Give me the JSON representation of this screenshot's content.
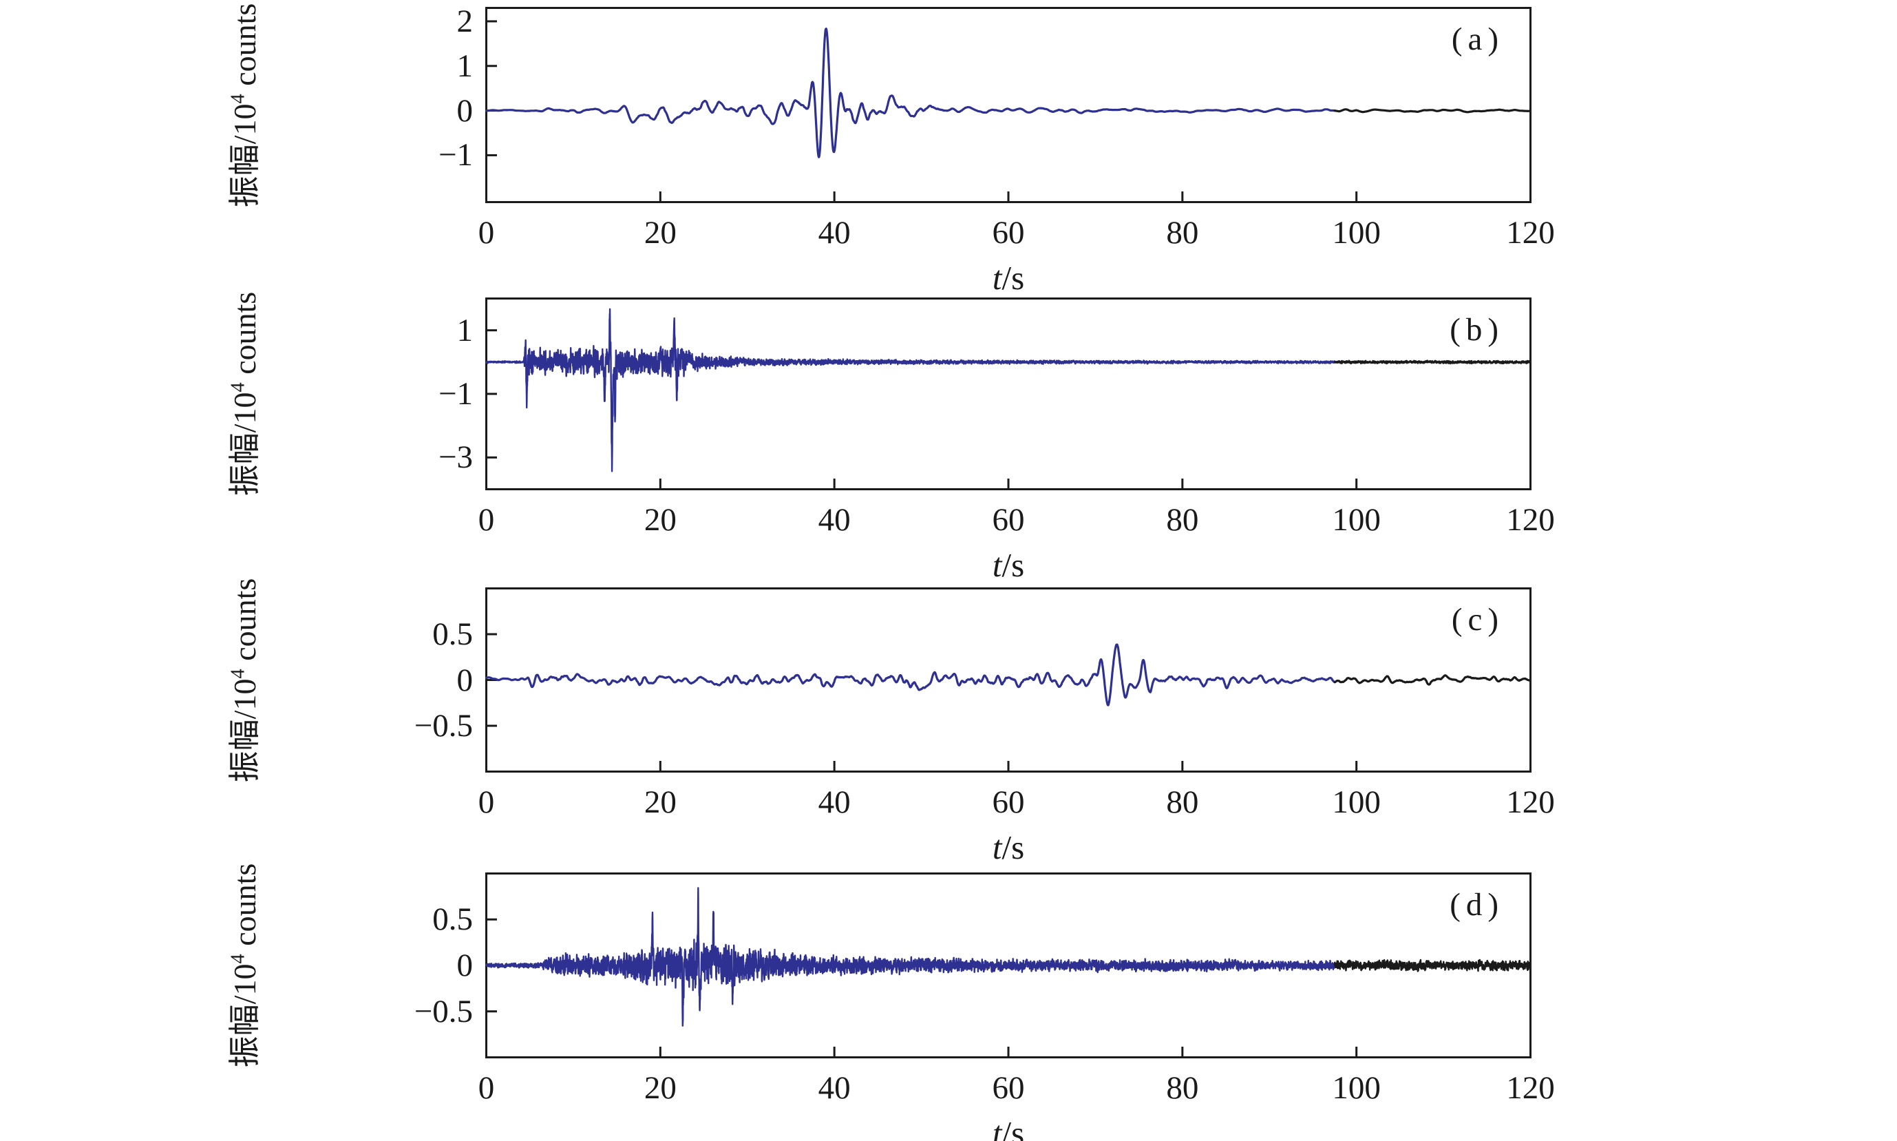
{
  "figure": {
    "background": "#ffffff",
    "axis_color": "#1a1a1a",
    "trace_color": "#2e3192",
    "tail_color": "#1a1a1a",
    "tail_start_t": 97.5
  },
  "chart_data": [
    {
      "panel": "a",
      "type": "line",
      "title": "(a)",
      "xlabel_var": "t",
      "xlabel_unit": "s",
      "ylabel_prefix": "振幅/10",
      "ylabel_sup": "4",
      "ylabel_suffix": " counts",
      "xlim": [
        0,
        120
      ],
      "xticks": [
        0,
        20,
        40,
        60,
        80,
        100,
        120
      ],
      "ylim": [
        -2.05,
        2.3
      ],
      "yticks": [
        {
          "v": 2,
          "label": "2"
        },
        {
          "v": 1,
          "label": "1"
        },
        {
          "v": 0,
          "label": "0"
        },
        {
          "v": -1,
          "label": "−1"
        }
      ],
      "trace_segments": [
        {
          "from_t": 0,
          "to_t": 97.5,
          "color": "#2e3192",
          "name": "processed-signal"
        },
        {
          "from_t": 97.5,
          "to_t": 120,
          "color": "#1a1a1a",
          "name": "tail-signal"
        }
      ],
      "signal": {
        "kind": "band-limited-oscillation",
        "dominant_period_s": 1.35,
        "dt": 0.03,
        "smooth_window": 22,
        "smooth_passes": 2,
        "peak_value": 1.9,
        "trough_value": -1.75,
        "peak_time_s": 39,
        "envelope": [
          [
            0,
            0.03
          ],
          [
            5,
            0.04
          ],
          [
            6,
            0.1
          ],
          [
            10,
            0.12
          ],
          [
            14,
            0.1
          ],
          [
            16,
            0.28
          ],
          [
            18,
            0.25
          ],
          [
            20,
            0.3
          ],
          [
            22,
            0.33
          ],
          [
            24,
            0.28
          ],
          [
            26,
            0.3
          ],
          [
            28,
            0.3
          ],
          [
            30,
            0.42
          ],
          [
            32,
            0.35
          ],
          [
            34,
            0.5
          ],
          [
            36,
            0.55
          ],
          [
            37,
            0.5
          ],
          [
            40,
            0.5
          ],
          [
            42,
            0.55
          ],
          [
            44,
            0.5
          ],
          [
            46,
            0.42
          ],
          [
            48,
            0.35
          ],
          [
            50,
            0.3
          ],
          [
            52,
            0.22
          ],
          [
            54,
            0.12
          ],
          [
            56,
            0.1
          ],
          [
            60,
            0.08
          ],
          [
            64,
            0.1
          ],
          [
            68,
            0.08
          ],
          [
            72,
            0.09
          ],
          [
            76,
            0.08
          ],
          [
            80,
            0.07
          ],
          [
            85,
            0.06
          ],
          [
            90,
            0.06
          ],
          [
            95,
            0.05
          ],
          [
            100,
            0.05
          ],
          [
            110,
            0.05
          ],
          [
            120,
            0.05
          ]
        ],
        "events": [
          {
            "t": 37.5,
            "amp": 0.6,
            "w": 0.35
          },
          {
            "t": 38.25,
            "amp": -1.55,
            "w": 0.42
          },
          {
            "t": 39.05,
            "amp": 1.75,
            "w": 0.45
          },
          {
            "t": 39.9,
            "amp": -0.95,
            "w": 0.4
          },
          {
            "t": 40.7,
            "amp": 0.5,
            "w": 0.35
          }
        ]
      }
    },
    {
      "panel": "b",
      "type": "line",
      "title": "(b)",
      "xlabel_var": "t",
      "xlabel_unit": "s",
      "ylabel_prefix": "振幅/10",
      "ylabel_sup": "4",
      "ylabel_suffix": " counts",
      "xlim": [
        0,
        120
      ],
      "xticks": [
        0,
        20,
        40,
        60,
        80,
        100,
        120
      ],
      "ylim": [
        -4,
        2
      ],
      "yticks": [
        {
          "v": 1,
          "label": "1"
        },
        {
          "v": -1,
          "label": "−1"
        },
        {
          "v": -3,
          "label": "−3"
        }
      ],
      "trace_segments": [
        {
          "from_t": 0,
          "to_t": 97.5,
          "color": "#2e3192",
          "name": "processed-signal"
        },
        {
          "from_t": 97.5,
          "to_t": 120,
          "color": "#1a1a1a",
          "name": "tail-signal"
        }
      ],
      "signal": {
        "kind": "high-frequency-noise-burst",
        "onset_time_s": 4.5,
        "dt": 0.012,
        "smooth_window": 2,
        "smooth_passes": 1,
        "peak_value": 1.35,
        "trough_value": -2.9,
        "trough_time_s": 14.5,
        "envelope": [
          [
            0,
            0.035
          ],
          [
            4.3,
            0.035
          ],
          [
            4.5,
            0.8
          ],
          [
            5.5,
            0.5
          ],
          [
            7,
            0.45
          ],
          [
            9,
            0.5
          ],
          [
            11,
            0.45
          ],
          [
            12.5,
            0.55
          ],
          [
            13.5,
            0.7
          ],
          [
            14.3,
            0.9
          ],
          [
            15,
            0.65
          ],
          [
            16,
            0.5
          ],
          [
            17,
            0.45
          ],
          [
            19,
            0.45
          ],
          [
            21,
            0.6
          ],
          [
            21.8,
            0.75
          ],
          [
            22.5,
            0.5
          ],
          [
            24,
            0.35
          ],
          [
            26,
            0.25
          ],
          [
            28,
            0.2
          ],
          [
            30,
            0.15
          ],
          [
            34,
            0.12
          ],
          [
            40,
            0.1
          ],
          [
            48,
            0.08
          ],
          [
            56,
            0.07
          ],
          [
            70,
            0.06
          ],
          [
            85,
            0.05
          ],
          [
            100,
            0.05
          ],
          [
            120,
            0.05
          ]
        ],
        "events": [
          {
            "t": 4.5,
            "amp": 0.9,
            "w": 0.06
          },
          {
            "t": 4.65,
            "amp": -1.05,
            "w": 0.07
          },
          {
            "t": 13.6,
            "amp": -1.2,
            "w": 0.07
          },
          {
            "t": 14.2,
            "amp": 1.3,
            "w": 0.08
          },
          {
            "t": 14.45,
            "amp": -2.85,
            "w": 0.1
          },
          {
            "t": 14.8,
            "amp": -1.5,
            "w": 0.06
          },
          {
            "t": 21.6,
            "amp": 1.2,
            "w": 0.08
          },
          {
            "t": 21.9,
            "amp": -1.0,
            "w": 0.07
          }
        ]
      }
    },
    {
      "panel": "c",
      "type": "line",
      "title": "(c)",
      "xlabel_var": "t",
      "xlabel_unit": "s",
      "ylabel_prefix": "振幅/10",
      "ylabel_sup": "4",
      "ylabel_suffix": " counts",
      "xlim": [
        0,
        120
      ],
      "xticks": [
        0,
        20,
        40,
        60,
        80,
        100,
        120
      ],
      "ylim": [
        -1,
        1
      ],
      "yticks": [
        {
          "v": 0.5,
          "label": "0.5"
        },
        {
          "v": 0,
          "label": "0"
        },
        {
          "v": -0.5,
          "label": "−0.5"
        }
      ],
      "trace_segments": [
        {
          "from_t": 0,
          "to_t": 97.5,
          "color": "#2e3192",
          "name": "processed-signal"
        },
        {
          "from_t": 97.5,
          "to_t": 120,
          "color": "#1a1a1a",
          "name": "tail-signal"
        }
      ],
      "signal": {
        "kind": "band-limited-oscillation",
        "dominant_period_s": 0.85,
        "dt": 0.03,
        "smooth_window": 14,
        "smooth_passes": 2,
        "peak_value": 0.38,
        "trough_value": -0.32,
        "peak_time_s": 72.5,
        "envelope": [
          [
            0,
            0.03
          ],
          [
            4.5,
            0.04
          ],
          [
            5,
            0.1
          ],
          [
            6,
            0.12
          ],
          [
            8,
            0.09
          ],
          [
            10,
            0.08
          ],
          [
            12,
            0.07
          ],
          [
            14,
            0.08
          ],
          [
            16,
            0.09
          ],
          [
            18,
            0.1
          ],
          [
            20,
            0.07
          ],
          [
            23,
            0.06
          ],
          [
            26,
            0.08
          ],
          [
            28,
            0.12
          ],
          [
            30,
            0.13
          ],
          [
            32,
            0.12
          ],
          [
            34,
            0.1
          ],
          [
            36,
            0.11
          ],
          [
            38,
            0.12
          ],
          [
            40,
            0.12
          ],
          [
            42,
            0.11
          ],
          [
            44,
            0.12
          ],
          [
            46,
            0.12
          ],
          [
            48,
            0.13
          ],
          [
            50,
            0.12
          ],
          [
            52,
            0.12
          ],
          [
            54,
            0.12
          ],
          [
            56,
            0.13
          ],
          [
            58,
            0.14
          ],
          [
            60,
            0.13
          ],
          [
            62,
            0.12
          ],
          [
            64,
            0.12
          ],
          [
            66,
            0.1
          ],
          [
            68,
            0.12
          ],
          [
            70,
            0.15
          ],
          [
            74,
            0.12
          ],
          [
            76,
            0.16
          ],
          [
            78,
            0.13
          ],
          [
            80,
            0.12
          ],
          [
            82,
            0.1
          ],
          [
            84,
            0.1
          ],
          [
            86,
            0.08
          ],
          [
            88,
            0.08
          ],
          [
            90,
            0.07
          ],
          [
            94,
            0.06
          ],
          [
            98,
            0.06
          ],
          [
            102,
            0.06
          ],
          [
            106,
            0.06
          ],
          [
            110,
            0.07
          ],
          [
            115,
            0.06
          ],
          [
            120,
            0.06
          ]
        ],
        "events": [
          {
            "t": 70.6,
            "amp": 0.2,
            "w": 0.3
          },
          {
            "t": 71.5,
            "amp": -0.3,
            "w": 0.4
          },
          {
            "t": 72.45,
            "amp": 0.37,
            "w": 0.42
          },
          {
            "t": 73.5,
            "amp": -0.2,
            "w": 0.38
          },
          {
            "t": 75.5,
            "amp": 0.24,
            "w": 0.35
          },
          {
            "t": 76.3,
            "amp": -0.15,
            "w": 0.3
          }
        ]
      }
    },
    {
      "panel": "d",
      "type": "line",
      "title": "(d)",
      "xlabel_var": "t",
      "xlabel_unit": "s",
      "ylabel_prefix": "振幅/10",
      "ylabel_sup": "4",
      "ylabel_suffix": " counts",
      "xlim": [
        0,
        120
      ],
      "xticks": [
        0,
        20,
        40,
        60,
        80,
        100,
        120
      ],
      "ylim": [
        -1,
        1
      ],
      "yticks": [
        {
          "v": 0.5,
          "label": "0.5"
        },
        {
          "v": 0,
          "label": "0"
        },
        {
          "v": -0.5,
          "label": "−0.5"
        }
      ],
      "trace_segments": [
        {
          "from_t": 0,
          "to_t": 97.5,
          "color": "#2e3192",
          "name": "processed-signal"
        },
        {
          "from_t": 97.5,
          "to_t": 120,
          "color": "#1a1a1a",
          "name": "tail-signal"
        }
      ],
      "signal": {
        "kind": "high-frequency-noise-burst",
        "onset_time_s": 7,
        "dt": 0.012,
        "smooth_window": 2,
        "smooth_passes": 1,
        "peak_value": 0.55,
        "trough_value": -0.65,
        "peak_time_s": 24.5,
        "envelope": [
          [
            0,
            0.025
          ],
          [
            6,
            0.03
          ],
          [
            7,
            0.08
          ],
          [
            8,
            0.12
          ],
          [
            9,
            0.14
          ],
          [
            10,
            0.13
          ],
          [
            11,
            0.15
          ],
          [
            12,
            0.14
          ],
          [
            13,
            0.13
          ],
          [
            14,
            0.14
          ],
          [
            15,
            0.14
          ],
          [
            16,
            0.16
          ],
          [
            17,
            0.18
          ],
          [
            18,
            0.28
          ],
          [
            19,
            0.26
          ],
          [
            20,
            0.22
          ],
          [
            21,
            0.26
          ],
          [
            22,
            0.25
          ],
          [
            23,
            0.28
          ],
          [
            24,
            0.38
          ],
          [
            25,
            0.32
          ],
          [
            26,
            0.3
          ],
          [
            27,
            0.26
          ],
          [
            28,
            0.28
          ],
          [
            29,
            0.24
          ],
          [
            30,
            0.24
          ],
          [
            31,
            0.2
          ],
          [
            32,
            0.2
          ],
          [
            33,
            0.19
          ],
          [
            34,
            0.16
          ],
          [
            36,
            0.14
          ],
          [
            38,
            0.13
          ],
          [
            40,
            0.12
          ],
          [
            43,
            0.11
          ],
          [
            46,
            0.1
          ],
          [
            50,
            0.1
          ],
          [
            54,
            0.09
          ],
          [
            58,
            0.08
          ],
          [
            62,
            0.08
          ],
          [
            66,
            0.07
          ],
          [
            70,
            0.08
          ],
          [
            74,
            0.07
          ],
          [
            78,
            0.08
          ],
          [
            82,
            0.07
          ],
          [
            86,
            0.07
          ],
          [
            90,
            0.06
          ],
          [
            94,
            0.06
          ],
          [
            98,
            0.06
          ],
          [
            102,
            0.06
          ],
          [
            106,
            0.07
          ],
          [
            110,
            0.06
          ],
          [
            115,
            0.07
          ],
          [
            120,
            0.06
          ]
        ],
        "events": [
          {
            "t": 19.1,
            "amp": 0.5,
            "w": 0.06
          },
          {
            "t": 22.6,
            "amp": -0.55,
            "w": 0.07
          },
          {
            "t": 24.35,
            "amp": 0.58,
            "w": 0.07
          },
          {
            "t": 24.55,
            "amp": -0.63,
            "w": 0.08
          },
          {
            "t": 26.1,
            "amp": 0.5,
            "w": 0.06
          },
          {
            "t": 28.3,
            "amp": -0.45,
            "w": 0.06
          }
        ]
      }
    }
  ]
}
